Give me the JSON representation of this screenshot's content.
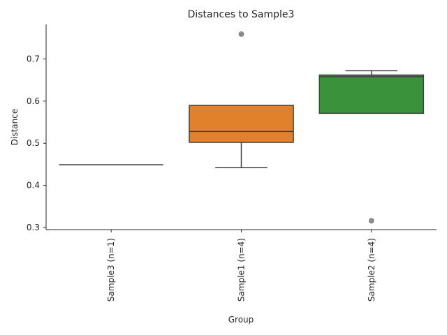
{
  "chart_data": {
    "type": "box",
    "title": "Distances to Sample3",
    "xlabel": "Group",
    "ylabel": "Distance",
    "ylim": [
      0.295,
      0.782
    ],
    "yticks": [
      0.3,
      0.4,
      0.5,
      0.6,
      0.7
    ],
    "ytick_labels": [
      "0.3",
      "0.4",
      "0.5",
      "0.6",
      "0.7"
    ],
    "grid": false,
    "categories": [
      "Sample3 (n=1)",
      "Sample1 (n=4)",
      "Sample2 (n=4)"
    ],
    "boxes": [
      {
        "category": "Sample3 (n=1)",
        "color": "#3274a1",
        "q1": 0.449,
        "median": 0.449,
        "q3": 0.449,
        "whisker_low": 0.449,
        "whisker_high": 0.449,
        "outliers": []
      },
      {
        "category": "Sample1 (n=4)",
        "color": "#e1812c",
        "q1": 0.502,
        "median": 0.528,
        "q3": 0.59,
        "whisker_low": 0.442,
        "whisker_high": 0.59,
        "outliers": [
          0.759
        ]
      },
      {
        "category": "Sample2 (n=4)",
        "color": "#3a923a",
        "q1": 0.571,
        "median": 0.658,
        "q3": 0.662,
        "whisker_low": 0.571,
        "whisker_high": 0.672,
        "outliers": [
          0.316
        ]
      }
    ]
  }
}
